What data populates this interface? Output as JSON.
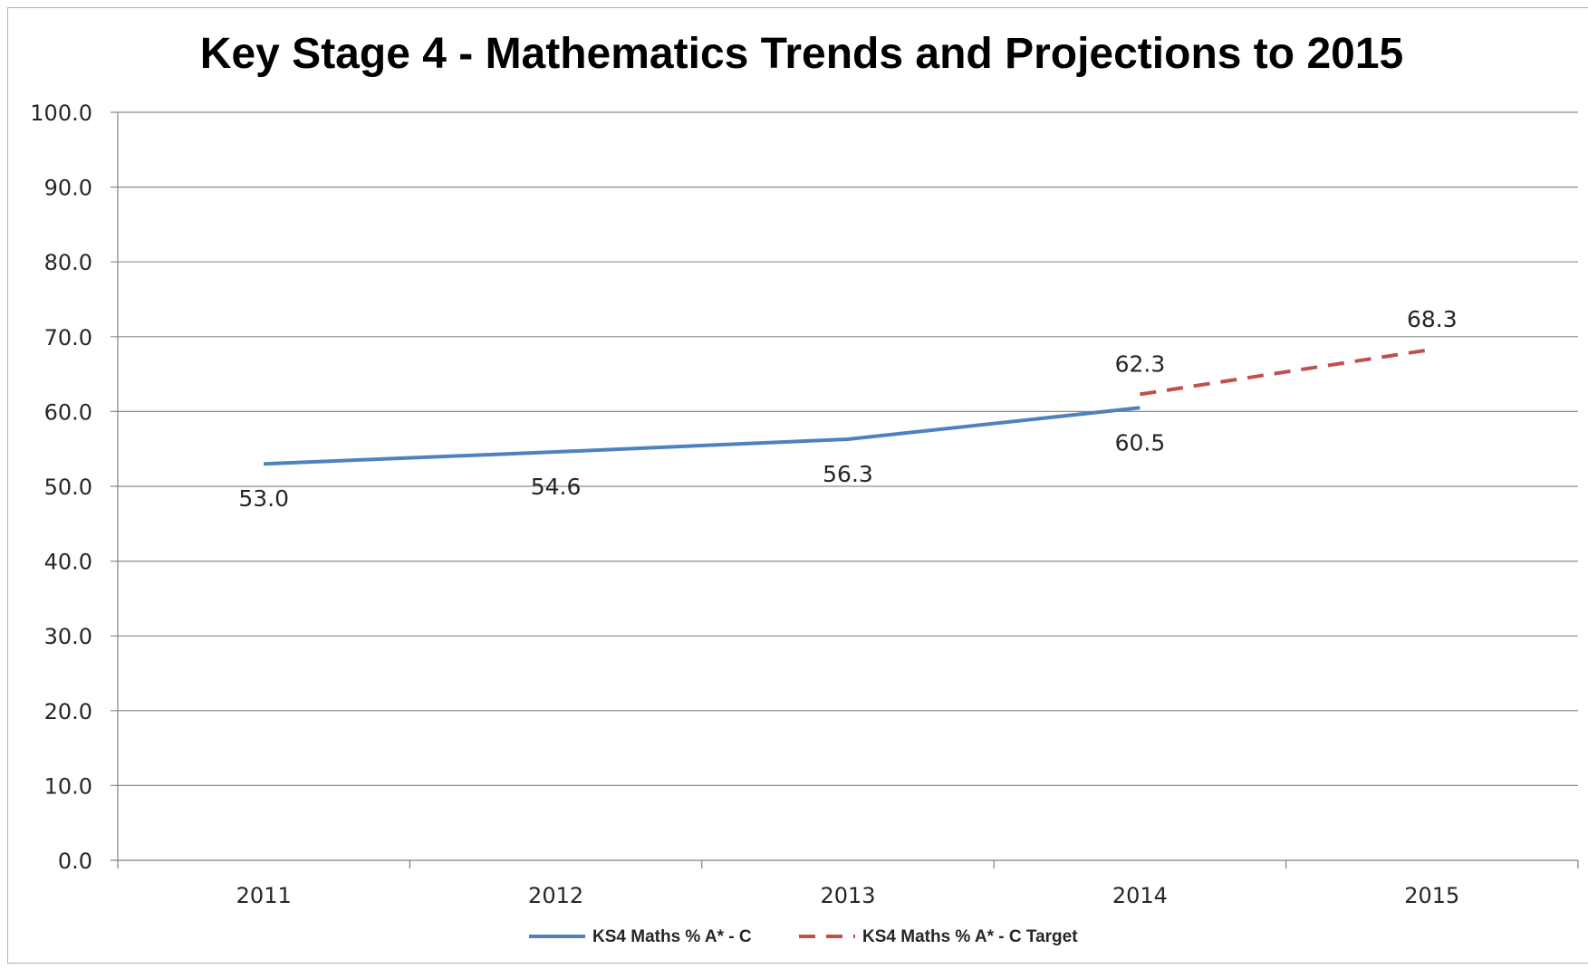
{
  "chart_data": {
    "type": "line",
    "title": "Key Stage 4 - Mathematics Trends and Projections to 2015",
    "xlabel": "",
    "ylabel": "",
    "categories": [
      "2011",
      "2012",
      "2013",
      "2014",
      "2015"
    ],
    "ylim": [
      0,
      100
    ],
    "yticks": [
      "0.0",
      "10.0",
      "20.0",
      "30.0",
      "40.0",
      "50.0",
      "60.0",
      "70.0",
      "80.0",
      "90.0",
      "100.0"
    ],
    "grid": true,
    "legend_position": "bottom",
    "series": [
      {
        "name": "KS4 Maths % A* - C",
        "color": "#4f81bd",
        "style": "solid",
        "values": [
          53.0,
          54.6,
          56.3,
          60.5,
          null
        ],
        "labels": [
          "53.0",
          "54.6",
          "56.3",
          "60.5",
          ""
        ]
      },
      {
        "name": "KS4 Maths % A* - C Target",
        "color": "#c0504d",
        "style": "dashed",
        "values": [
          null,
          null,
          null,
          62.3,
          68.3
        ],
        "labels": [
          "",
          "",
          "",
          "62.3",
          "68.3"
        ]
      }
    ]
  }
}
